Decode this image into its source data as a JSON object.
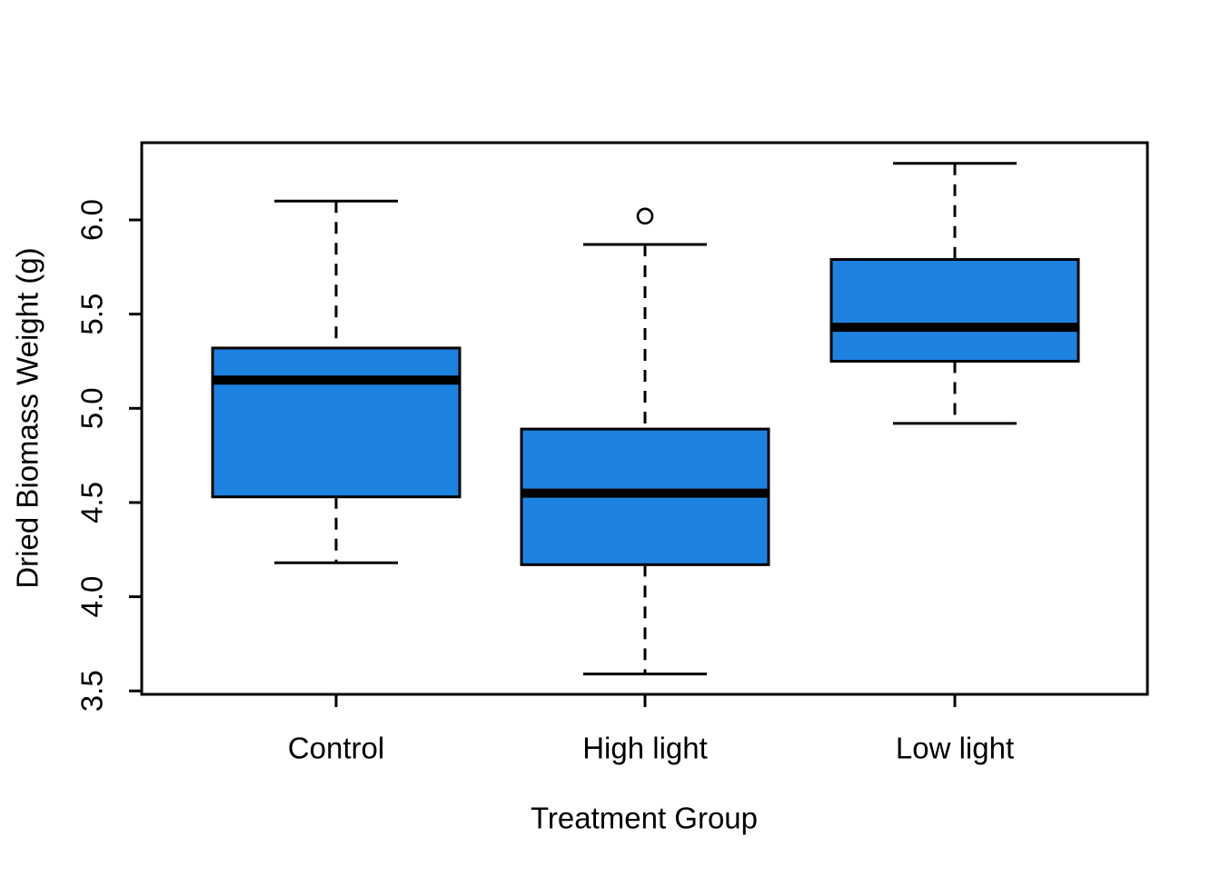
{
  "figure": {
    "title": "",
    "background": "#FFFFFF"
  },
  "chart_data": {
    "type": "boxplot",
    "title": "",
    "xlabel": "Treatment Group",
    "ylabel": "Dried Biomass Weight (g)",
    "categories": [
      "Control",
      "High light",
      "Low light"
    ],
    "y_axis": {
      "tick_values": [
        3.5,
        4.0,
        4.5,
        5.0,
        5.5,
        6.0
      ],
      "tick_labels": [
        "3.5",
        "4.0",
        "4.5",
        "5.0",
        "5.5",
        "6.0"
      ],
      "range_shown": [
        3.48,
        6.41
      ],
      "label_rotation_deg": -90
    },
    "x_axis": {
      "tick_labels": [
        "Control",
        "High light",
        "Low light"
      ]
    },
    "groups": [
      {
        "label": "Control",
        "whisker_low": 4.18,
        "q1": 4.53,
        "median": 5.15,
        "q3": 5.32,
        "whisker_high": 6.1,
        "outliers": []
      },
      {
        "label": "High light",
        "whisker_low": 3.59,
        "q1": 4.17,
        "median": 4.55,
        "q3": 4.89,
        "whisker_high": 5.87,
        "outliers": [
          6.02
        ]
      },
      {
        "label": "Low light",
        "whisker_low": 4.92,
        "q1": 5.25,
        "median": 5.43,
        "q3": 5.79,
        "whisker_high": 6.3,
        "outliers": []
      }
    ],
    "legend": null,
    "grid": false,
    "style": {
      "box_fill": "#1E82E1",
      "line_color": "#000000",
      "median_color": "#000000",
      "outlier_fill": "#FFFFFF",
      "whisker_style": "dashed"
    }
  }
}
